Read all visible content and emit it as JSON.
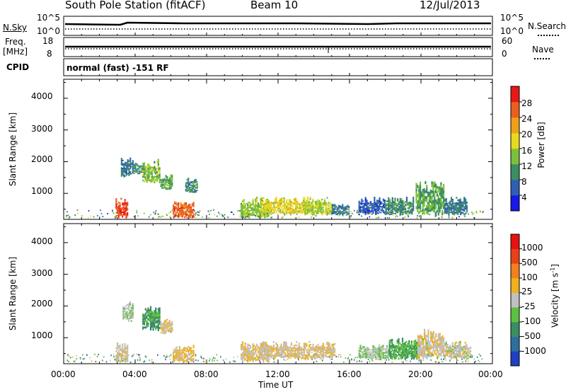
{
  "header": {
    "station": "South Pole Station (fitACF)",
    "beam": "Beam 10",
    "date": "12/Jul/2013"
  },
  "strip_panels": {
    "nsky_label": "N.Sky",
    "nsky_ticks": [
      "10^5",
      "10^0"
    ],
    "nsearch_label": "N.Search",
    "nsearch_ticks": [
      "10^5",
      "10^0"
    ],
    "freq_label_line1": "Freq.",
    "freq_label_line2": "[MHz]",
    "freq_ticks": [
      "18",
      "8"
    ],
    "nave_label": "Nave",
    "nave_ticks": [
      "60",
      "0"
    ],
    "cpid_label": "CPID",
    "cpid_text": "normal (fast) -151 RF"
  },
  "x_axis": {
    "ticks": [
      "00:00",
      "04:00",
      "08:00",
      "12:00",
      "16:00",
      "20:00",
      "00:00"
    ],
    "label": "Time UT"
  },
  "power_panel": {
    "ylabel": "Slant Range [km]",
    "yticks": [
      "4000",
      "3000",
      "2000",
      "1000"
    ],
    "colorbar_label": "Power [dB]",
    "colorbar_ticks": [
      "28",
      "24",
      "20",
      "16",
      "12",
      "8",
      "4"
    ]
  },
  "velocity_panel": {
    "ylabel": "Slant Range [km]",
    "yticks": [
      "4000",
      "3000",
      "2000",
      "1000"
    ],
    "colorbar_label": "Velocity [m s",
    "colorbar_label_sup": "-1",
    "colorbar_label_end": "]",
    "colorbar_ticks": [
      "1000",
      "500",
      "100",
      "25",
      "-25",
      "-100",
      "-500",
      "-1000"
    ]
  },
  "colors": {
    "power_scale": [
      "#1818e8",
      "#2f5fb0",
      "#3c8c64",
      "#7cc03c",
      "#e8d820",
      "#f0a018",
      "#e86020",
      "#e81818"
    ],
    "velocity_scale": [
      "#2040c0",
      "#2f6fa0",
      "#3c8c64",
      "#5cc040",
      "#c0c0c0",
      "#f0b020",
      "#f08020",
      "#e84018",
      "#e81010"
    ]
  },
  "chart_data": [
    {
      "type": "heatmap",
      "title": "Power",
      "x_range_hours": [
        0,
        24
      ],
      "y_range_km": [
        180,
        4600
      ],
      "quantity": "Power [dB]",
      "color_range": [
        0,
        32
      ],
      "patches": [
        {
          "t": [
            2.9,
            3.6
          ],
          "r": [
            200,
            900
          ],
          "v": 28
        },
        {
          "t": [
            3.2,
            3.9
          ],
          "r": [
            1500,
            2200
          ],
          "v": 8
        },
        {
          "t": [
            3.9,
            4.5
          ],
          "r": [
            1600,
            2000
          ],
          "v": 10
        },
        {
          "t": [
            4.4,
            5.4
          ],
          "r": [
            1300,
            2100
          ],
          "v": 14
        },
        {
          "t": [
            5.4,
            6.1
          ],
          "r": [
            1100,
            1600
          ],
          "v": 12
        },
        {
          "t": [
            6.1,
            7.3
          ],
          "r": [
            200,
            800
          ],
          "v": 26
        },
        {
          "t": [
            6.8,
            7.5
          ],
          "r": [
            1000,
            1500
          ],
          "v": 10
        },
        {
          "t": [
            9.9,
            11.5
          ],
          "r": [
            200,
            900
          ],
          "v": 14
        },
        {
          "t": [
            11.0,
            13.6
          ],
          "r": [
            300,
            900
          ],
          "v": 18
        },
        {
          "t": [
            13.4,
            15.0
          ],
          "r": [
            300,
            900
          ],
          "v": 16
        },
        {
          "t": [
            15.0,
            16.0
          ],
          "r": [
            300,
            700
          ],
          "v": 8
        },
        {
          "t": [
            16.5,
            18.0
          ],
          "r": [
            300,
            900
          ],
          "v": 6
        },
        {
          "t": [
            18.0,
            19.6
          ],
          "r": [
            300,
            900
          ],
          "v": 10
        },
        {
          "t": [
            19.7,
            21.3
          ],
          "r": [
            300,
            1400
          ],
          "v": 12
        },
        {
          "t": [
            21.3,
            22.6
          ],
          "r": [
            300,
            900
          ],
          "v": 8
        }
      ]
    },
    {
      "type": "heatmap",
      "title": "Velocity",
      "x_range_hours": [
        0,
        24
      ],
      "y_range_km": [
        180,
        4600
      ],
      "quantity": "Velocity [m s-1]",
      "color_range": [
        -1000,
        1000
      ],
      "patches": [
        {
          "t": [
            2.9,
            3.6
          ],
          "r": [
            200,
            900
          ],
          "v": 50
        },
        {
          "t": [
            3.3,
            3.9
          ],
          "r": [
            1500,
            2200
          ],
          "v": -60
        },
        {
          "t": [
            4.4,
            5.4
          ],
          "r": [
            1200,
            2000
          ],
          "v": -400
        },
        {
          "t": [
            5.4,
            6.1
          ],
          "r": [
            1100,
            1600
          ],
          "v": 60
        },
        {
          "t": [
            6.1,
            7.3
          ],
          "r": [
            200,
            800
          ],
          "v": 150
        },
        {
          "t": [
            9.9,
            11.5
          ],
          "r": [
            200,
            900
          ],
          "v": 120
        },
        {
          "t": [
            11.0,
            15.2
          ],
          "r": [
            300,
            900
          ],
          "v": 80
        },
        {
          "t": [
            16.5,
            18.2
          ],
          "r": [
            300,
            800
          ],
          "v": -60
        },
        {
          "t": [
            18.2,
            19.8
          ],
          "r": [
            300,
            1000
          ],
          "v": -300
        },
        {
          "t": [
            19.8,
            21.3
          ],
          "r": [
            300,
            1300
          ],
          "v": 60
        },
        {
          "t": [
            21.3,
            22.8
          ],
          "r": [
            300,
            900
          ],
          "v": 20
        }
      ]
    }
  ]
}
